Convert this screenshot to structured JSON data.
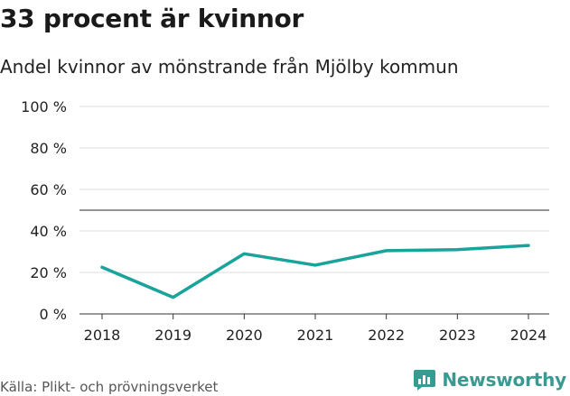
{
  "header": {
    "title": "33 procent är kvinnor",
    "subtitle": "Andel kvinnor av mönstrande från Mjölby kommun"
  },
  "footer": {
    "source": "Källa: Plikt- och prövningsverket",
    "brand": "Newsworthy",
    "brand_color": "#3a9a92"
  },
  "chart_data": {
    "type": "line",
    "title": "33 procent är kvinnor",
    "subtitle": "Andel kvinnor av mönstrande från Mjölby kommun",
    "xlabel": "",
    "ylabel": "",
    "x": [
      "2018",
      "2019",
      "2020",
      "2021",
      "2022",
      "2023",
      "2024"
    ],
    "series": [
      {
        "name": "Andel kvinnor",
        "values": [
          22.5,
          8,
          29,
          23.5,
          30.5,
          31,
          33
        ],
        "color": "#1aa39a"
      }
    ],
    "ylim": [
      0,
      100
    ],
    "yticks": [
      0,
      20,
      40,
      60,
      80,
      100
    ],
    "ytick_labels": [
      "0 %",
      "20 %",
      "40 %",
      "60 %",
      "80 %",
      "100 %"
    ],
    "reference_line": 50,
    "grid": true
  }
}
